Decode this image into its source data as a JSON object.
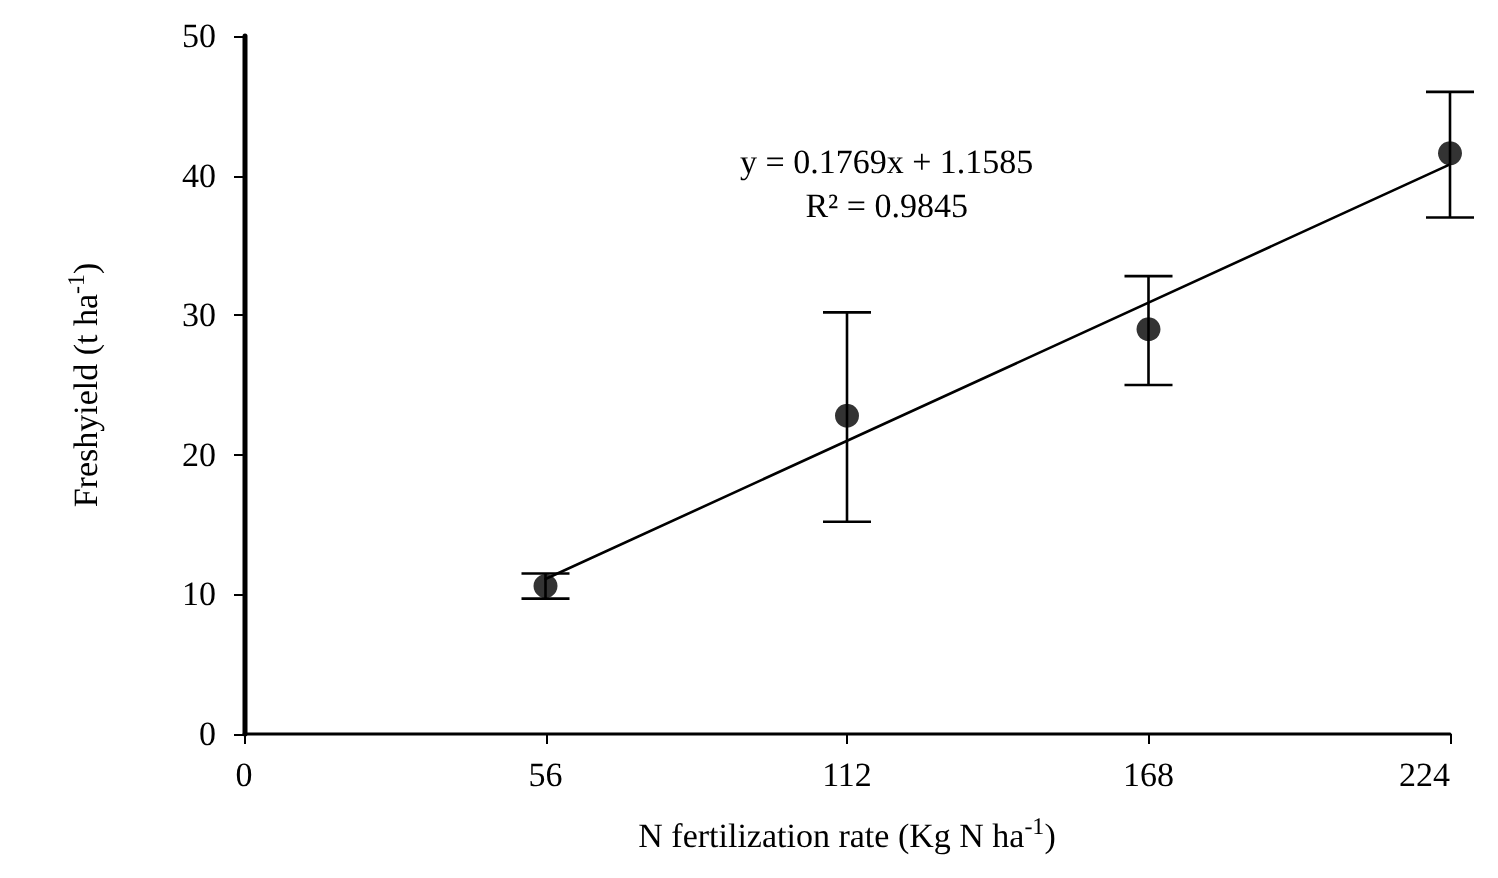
{
  "chart_data": {
    "type": "scatter",
    "xlabel": "N fertilization rate (Kg N ha$^{-1}$)",
    "ylabel": "Freshyield (t ha$^{-1}$)",
    "x": [
      56,
      112,
      168,
      224
    ],
    "xlim": [
      0,
      224
    ],
    "xticks": [
      0,
      56,
      112,
      168,
      224
    ],
    "ylim": [
      0,
      50
    ],
    "yticks": [
      0,
      10,
      20,
      30,
      40,
      50
    ],
    "marker": "circle",
    "series": [
      {
        "type": "scatter",
        "color": "#000000",
        "values": [
          10.6,
          22.8,
          29.0,
          41.6
        ],
        "errors": [
          [
            9.7,
            11.5
          ],
          [
            15.2,
            30.2
          ],
          [
            25.0,
            32.8
          ],
          [
            37.0,
            46.0
          ]
        ]
      },
      {
        "type": "line",
        "color": "#000000",
        "x": [
          56,
          224
        ],
        "values": [
          11.1,
          40.8
        ],
        "marker": "none",
        "line_style": "solid"
      }
    ],
    "annotations": [
      "y = 0.1769x + 1.1585\nR² = 0.9845"
    ]
  }
}
